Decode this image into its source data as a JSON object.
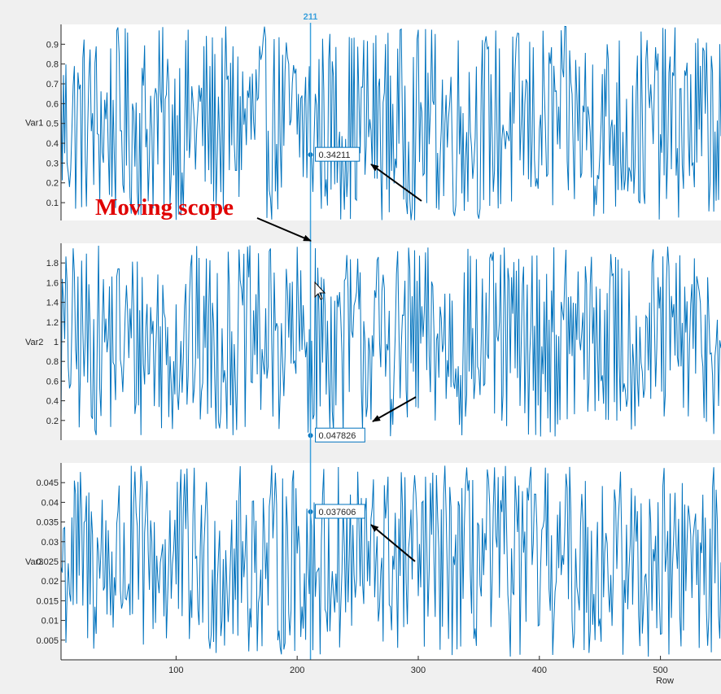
{
  "colors": {
    "background": "#f0f0f0",
    "plot_bg": "#ffffff",
    "line": "#0072bd",
    "axis": "#262626",
    "scope": "#3aa0dc",
    "annotation": "#e00000",
    "arrow": "#000000"
  },
  "scope": {
    "row": 211,
    "label": "211"
  },
  "annotation": {
    "text": "Moving scope"
  },
  "chart_data": {
    "type": "line",
    "x_label": "Row",
    "x_range": [
      5,
      550
    ],
    "x_ticks": [
      100,
      200,
      300,
      400,
      500
    ],
    "panels": [
      {
        "name": "Var1",
        "ylabel": "Var1",
        "y_range": [
          0.01,
          1.0
        ],
        "y_ticks": [
          0.1,
          0.2,
          0.3,
          0.4,
          0.5,
          0.6,
          0.7,
          0.8,
          0.9
        ],
        "value_at_scope": 0.34211,
        "tooltip": "0.34211",
        "series_min": 0.01,
        "series_max": 0.99
      },
      {
        "name": "Var2",
        "ylabel": "Var2",
        "y_range": [
          0.0,
          2.0
        ],
        "y_ticks": [
          0.2,
          0.4,
          0.6,
          0.8,
          1,
          1.2,
          1.4,
          1.6,
          1.8
        ],
        "value_at_scope": 0.047826,
        "tooltip": "0.047826",
        "series_min": 0.03,
        "series_max": 1.98
      },
      {
        "name": "Var3",
        "ylabel": "Var3",
        "y_range": [
          0.0,
          0.05
        ],
        "y_ticks": [
          0.005,
          0.01,
          0.015,
          0.02,
          0.025,
          0.03,
          0.035,
          0.04,
          0.045
        ],
        "value_at_scope": 0.037606,
        "tooltip": "0.037606",
        "series_min": 0.0005,
        "series_max": 0.0495
      }
    ]
  }
}
